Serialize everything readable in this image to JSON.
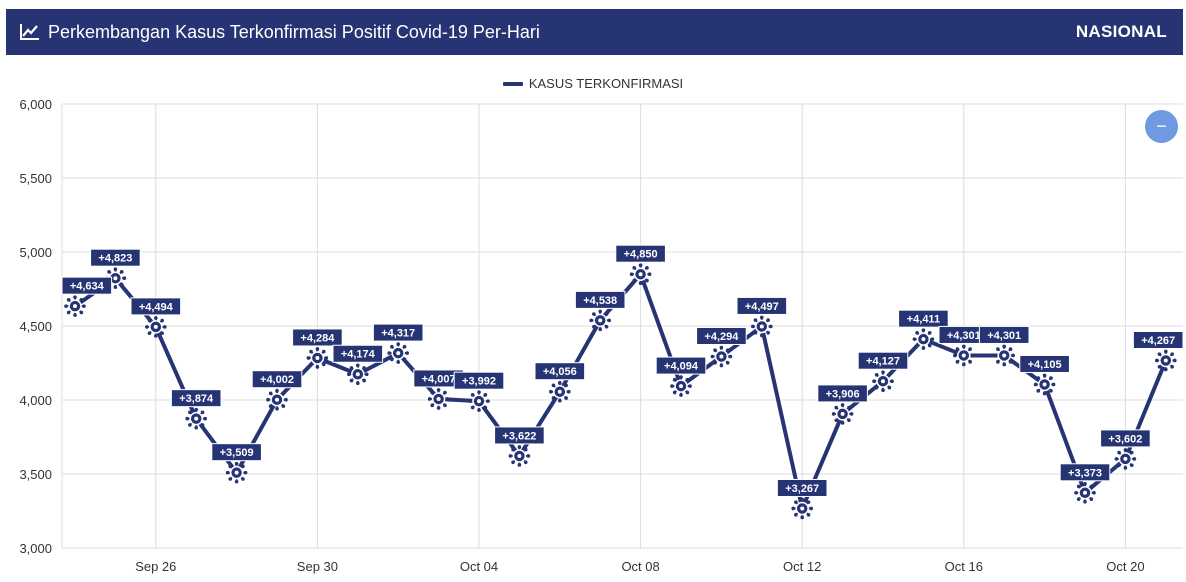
{
  "header": {
    "title": "Perkembangan Kasus Terkonfirmasi Positif Covid-19 Per-Hari",
    "scope": "NASIONAL",
    "icon": "line-chart-icon"
  },
  "controls": {
    "zoom_out_label": "−",
    "zoom_out_icon": "minus-icon"
  },
  "colors": {
    "primary": "#273474",
    "button": "#6f9ae0",
    "grid": "#dcdcdc"
  },
  "chart_data": {
    "type": "line",
    "title": "",
    "xlabel": "",
    "ylabel": "",
    "legend": {
      "position": "top-center",
      "entries": [
        "KASUS TERKONFIRMASI"
      ]
    },
    "grid": true,
    "ylim": [
      3000,
      6000
    ],
    "y_ticks": [
      "3,000",
      "3,500",
      "4,000",
      "4,500",
      "5,000",
      "5,500",
      "6,000"
    ],
    "y_tick_values": [
      3000,
      3500,
      4000,
      4500,
      5000,
      5500,
      6000
    ],
    "x_ticks": [
      "Sep 26",
      "Sep 30",
      "Oct 04",
      "Oct 08",
      "Oct 12",
      "Oct 16",
      "Oct 20"
    ],
    "x_tick_indices": [
      2,
      6,
      10,
      14,
      18,
      22,
      26
    ],
    "marker_icon": "virus-icon",
    "categories": [
      "Sep 24",
      "Sep 25",
      "Sep 26",
      "Sep 27",
      "Sep 28",
      "Sep 29",
      "Sep 30",
      "Oct 01",
      "Oct 02",
      "Oct 03",
      "Oct 04",
      "Oct 05",
      "Oct 06",
      "Oct 07",
      "Oct 08",
      "Oct 09",
      "Oct 10",
      "Oct 11",
      "Oct 12",
      "Oct 13",
      "Oct 14",
      "Oct 15",
      "Oct 16",
      "Oct 17",
      "Oct 18",
      "Oct 19",
      "Oct 20",
      "Oct 21"
    ],
    "series": [
      {
        "name": "KASUS TERKONFIRMASI",
        "values": [
          4634,
          4823,
          4494,
          3874,
          3509,
          4002,
          4284,
          4174,
          4317,
          4007,
          3992,
          3622,
          4056,
          4538,
          4850,
          4094,
          4294,
          4497,
          3267,
          3906,
          4127,
          4411,
          4301,
          4301,
          4105,
          3373,
          3602,
          4267
        ],
        "labels": [
          "+4,634",
          "+4,823",
          "+4,494",
          "+3,874",
          "+3,509",
          "+4,002",
          "+4,284",
          "+4,174",
          "+4,317",
          "+4,007",
          "+3,992",
          "+3,622",
          "+4,056",
          "+4,538",
          "+4,850",
          "+4,094",
          "+4,294",
          "+4,497",
          "+3,267",
          "+3,906",
          "+4,127",
          "+4,411",
          "+4,301",
          "+4,301",
          "+4,105",
          "+3,373",
          "+3,602",
          "+4,267"
        ]
      }
    ]
  }
}
